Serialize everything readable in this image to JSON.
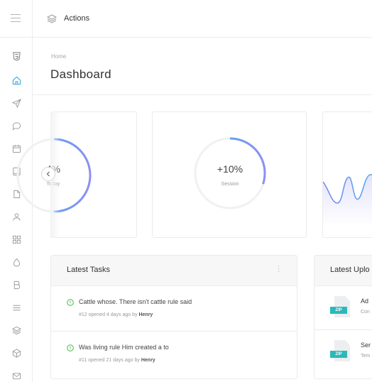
{
  "topbar": {
    "action_label": "Actions"
  },
  "header": {
    "breadcrumb": "Home",
    "title": "Dashboard"
  },
  "stats": [
    {
      "value": "4%",
      "label": "Today",
      "progress": 0.5
    },
    {
      "value": "+10%",
      "label": "Session",
      "progress": 0.3
    }
  ],
  "tasks_panel": {
    "title": "Latest Tasks",
    "more": "⋮",
    "tasks": [
      {
        "title": "Cattle whose. There isn't cattle rule said",
        "meta": "#12 opened 4 days ago by",
        "author": "Henry"
      },
      {
        "title": "Was living rule Him created a to",
        "meta": "#11 opened 21 days ago by",
        "author": "Henry"
      }
    ]
  },
  "uploads_panel": {
    "title": "Latest Uplo",
    "files": [
      {
        "type": "ZIP",
        "name": "Ad",
        "sub": "Con"
      },
      {
        "type": "ZIP",
        "name": "Ser",
        "sub": "Tem"
      }
    ]
  },
  "colors": {
    "accent": "#3fb3f0",
    "accent_end": "#8c8ff2",
    "file_tag": "#2db8b8"
  }
}
